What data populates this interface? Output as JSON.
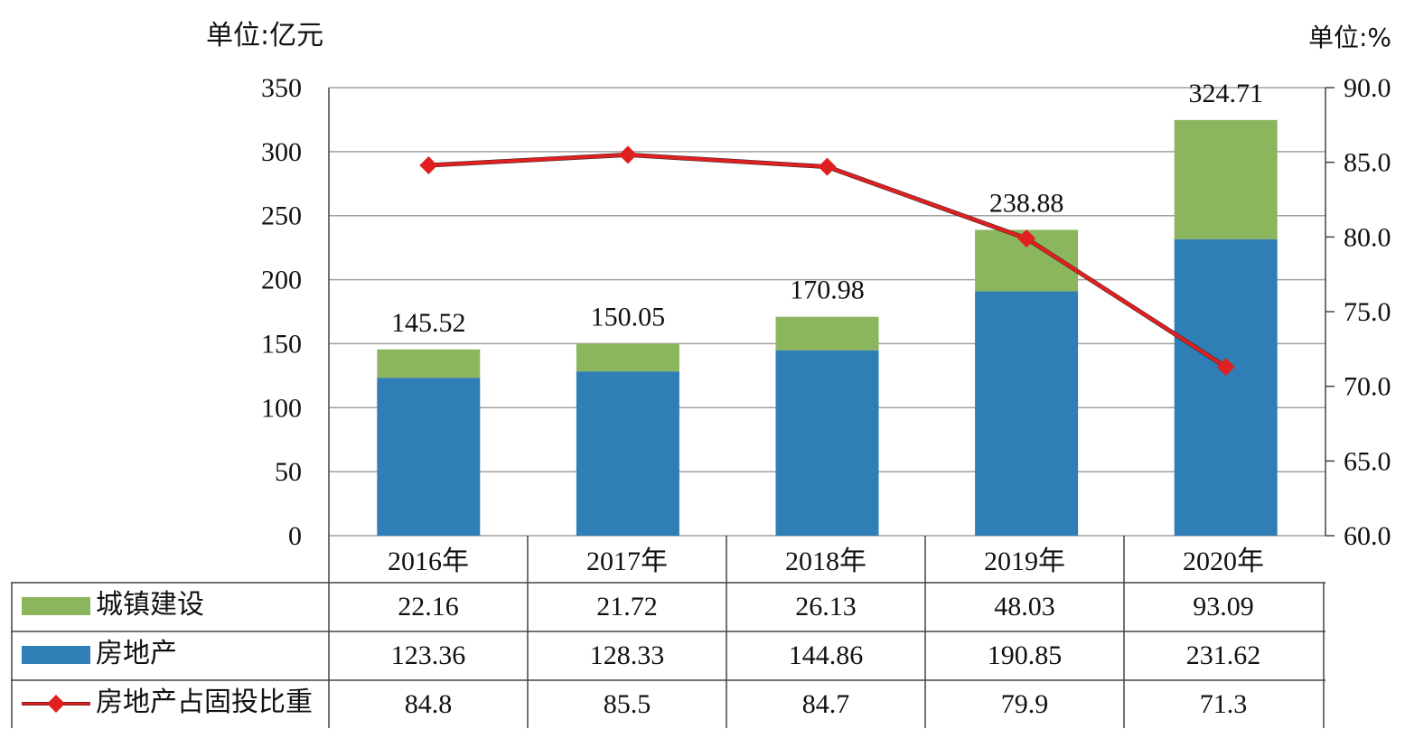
{
  "units": {
    "left": "单位:亿元",
    "right": "单位:%"
  },
  "colors": {
    "bar_urban": "#8bb65e",
    "bar_realestate": "#2f7eb5",
    "line": "#e02020",
    "grid": "#a0a0a0"
  },
  "chart_data": {
    "type": "bar",
    "categories": [
      "2016年",
      "2017年",
      "2018年",
      "2019年",
      "2020年"
    ],
    "stacked": true,
    "series": [
      {
        "name": "城镇建设",
        "type": "bar",
        "axis": "left",
        "values": [
          22.16,
          21.72,
          26.13,
          48.03,
          93.09
        ],
        "labels": [
          "22.16",
          "21.72",
          "26.13",
          "48.03",
          "93.09"
        ]
      },
      {
        "name": "房地产",
        "type": "bar",
        "axis": "left",
        "values": [
          123.36,
          128.33,
          144.86,
          190.85,
          231.62
        ],
        "labels": [
          "123.36",
          "128.33",
          "144.86",
          "190.85",
          "231.62"
        ]
      },
      {
        "name": "房地产占固投比重",
        "type": "line",
        "axis": "right",
        "values": [
          84.8,
          85.5,
          84.7,
          79.9,
          71.3
        ],
        "labels": [
          "84.8",
          "85.5",
          "84.7",
          "79.9",
          "71.3"
        ]
      }
    ],
    "totals": [
      "145.52",
      "150.05",
      "170.98",
      "238.88",
      "324.71"
    ],
    "y_left": {
      "range": [
        0,
        350
      ],
      "ticks": [
        "0",
        "50",
        "100",
        "150",
        "200",
        "250",
        "300",
        "350"
      ]
    },
    "y_right": {
      "range": [
        60,
        90
      ],
      "ticks": [
        "60.0",
        "65.0",
        "70.0",
        "75.0",
        "80.0",
        "85.0",
        "90.0"
      ]
    },
    "grid": true,
    "legend": "data-table"
  }
}
